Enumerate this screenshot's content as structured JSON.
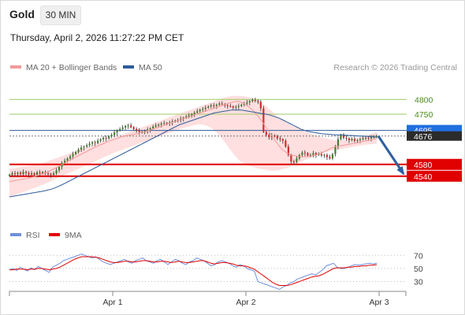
{
  "header": {
    "title": "Gold",
    "timeframe": "30 MIN",
    "datetime": "Thursday, April 2, 2026 11:27:22 PM CET"
  },
  "legend": {
    "main": [
      {
        "label": "MA 20 + Bollinger Bands",
        "color": "#f39a9a"
      },
      {
        "label": "MA 50",
        "color": "#2e5b9a"
      }
    ],
    "rsi": [
      {
        "label": "RSI",
        "color": "#6f8fdc"
      },
      {
        "label": "9MA",
        "color": "#e00000"
      }
    ],
    "credit": "Research © 2026 Trading Central"
  },
  "colors": {
    "up": "#3f7f2a",
    "down": "#d42a2a",
    "band_fill": "#ffd9d9",
    "ma20": "#f39a9a",
    "ma50": "#2e5b9a",
    "resistance": "#9ccc65",
    "support": "#e00000",
    "pivot": "#2e5b9a",
    "arrow": "#2e5fa0",
    "rsi": "#6f8fdc",
    "rsi_ma": "#e00000"
  },
  "chart_data": [
    {
      "type": "candlestick",
      "title": "Gold 30 MIN",
      "ylim": [
        4470,
        4830
      ],
      "x_ticks": [
        "Apr 1",
        "Apr 2",
        "Apr 3"
      ],
      "levels": [
        {
          "value": 4800,
          "label": "4800",
          "kind": "resistance"
        },
        {
          "value": 4750,
          "label": "4750",
          "kind": "resistance"
        },
        {
          "value": 4695,
          "label": "4695",
          "kind": "pivot"
        },
        {
          "value": 4676,
          "label": "4676",
          "kind": "last"
        },
        {
          "value": 4580,
          "label": "4580",
          "kind": "support"
        },
        {
          "value": 4540,
          "label": "4540",
          "kind": "support"
        }
      ],
      "close": [
        4545,
        4550,
        4548,
        4552,
        4547,
        4555,
        4551,
        4546,
        4550,
        4545,
        4553,
        4549,
        4554,
        4550,
        4548,
        4545,
        4550,
        4560,
        4572,
        4585,
        4592,
        4600,
        4607,
        4615,
        4622,
        4630,
        4637,
        4640,
        4645,
        4650,
        4655,
        4652,
        4660,
        4665,
        4670,
        4668,
        4675,
        4680,
        4688,
        4695,
        4700,
        4705,
        4710,
        4712,
        4706,
        4700,
        4695,
        4690,
        4688,
        4692,
        4698,
        4702,
        4708,
        4712,
        4715,
        4718,
        4720,
        4718,
        4722,
        4725,
        4728,
        4730,
        4735,
        4738,
        4742,
        4746,
        4750,
        4755,
        4760,
        4765,
        4768,
        4772,
        4776,
        4780,
        4778,
        4782,
        4786,
        4784,
        4780,
        4778,
        4776,
        4772,
        4775,
        4778,
        4782,
        4786,
        4790,
        4794,
        4798,
        4796,
        4792,
        4770,
        4690,
        4680,
        4672,
        4678,
        4675,
        4668,
        4665,
        4660,
        4640,
        4612,
        4590,
        4588,
        4600,
        4612,
        4620,
        4618,
        4610,
        4612,
        4618,
        4612,
        4615,
        4610,
        4612,
        4605,
        4600,
        4615,
        4640,
        4665,
        4680,
        4670,
        4668,
        4662,
        4666,
        4660,
        4662,
        4665,
        4668,
        4670,
        4668,
        4672,
        4675,
        4676
      ],
      "ma20": [
        4522,
        4524,
        4526,
        4528,
        4530,
        4532,
        4535,
        4538,
        4542,
        4546,
        4550,
        4554,
        4560,
        4566,
        4572,
        4578,
        4585,
        4592,
        4598,
        4604,
        4610,
        4616,
        4622,
        4628,
        4634,
        4640,
        4645,
        4650,
        4655,
        4660,
        4664,
        4668,
        4672,
        4675,
        4678,
        4680,
        4682,
        4684,
        4687,
        4690,
        4694,
        4698,
        4702,
        4706,
        4710,
        4714,
        4718,
        4722,
        4726,
        4730,
        4734,
        4738,
        4742,
        4746,
        4750,
        4754,
        4758,
        4762,
        4766,
        4770,
        4774,
        4778,
        4782,
        4786,
        4790,
        4792,
        4794,
        4790,
        4784,
        4776,
        4766,
        4754,
        4740,
        4724,
        4706,
        4690,
        4672,
        4656,
        4640,
        4628,
        4620,
        4614,
        4610,
        4608,
        4606,
        4606,
        4606,
        4608,
        4610,
        4614,
        4618,
        4624,
        4630,
        4636,
        4640,
        4642,
        4644,
        4646,
        4648,
        4650,
        4652,
        4655,
        4658,
        4660,
        4662,
        4665,
        4668
      ],
      "ma50": [
        4470,
        4472,
        4474,
        4476,
        4478,
        4480,
        4482,
        4484,
        4486,
        4488,
        4490,
        4493,
        4496,
        4500,
        4505,
        4510,
        4516,
        4522,
        4528,
        4534,
        4540,
        4546,
        4552,
        4558,
        4564,
        4570,
        4576,
        4582,
        4588,
        4594,
        4600,
        4606,
        4612,
        4618,
        4624,
        4630,
        4636,
        4642,
        4648,
        4654,
        4660,
        4666,
        4672,
        4678,
        4684,
        4690,
        4696,
        4702,
        4708,
        4714,
        4718,
        4722,
        4726,
        4730,
        4734,
        4738,
        4742,
        4746,
        4750,
        4754,
        4756,
        4758,
        4760,
        4762,
        4764,
        4764,
        4764,
        4764,
        4762,
        4760,
        4758,
        4756,
        4754,
        4752,
        4750,
        4748,
        4744,
        4740,
        4736,
        4730,
        4724,
        4718,
        4712,
        4706,
        4700,
        4696,
        4692,
        4690,
        4688,
        4686,
        4684,
        4683,
        4682,
        4681,
        4680,
        4680,
        4680,
        4679,
        4678,
        4678,
        4677,
        4676,
        4676,
        4675,
        4674,
        4673,
        4672
      ],
      "bb_upper": [
        4565,
        4568,
        4572,
        4575,
        4578,
        4584,
        4592,
        4600,
        4608,
        4616,
        4624,
        4632,
        4640,
        4648,
        4656,
        4664,
        4672,
        4680,
        4688,
        4696,
        4704,
        4712,
        4720,
        4728,
        4736,
        4744,
        4752,
        4760,
        4768,
        4776,
        4784,
        4792,
        4800,
        4808,
        4812,
        4812,
        4810,
        4805,
        4795,
        4780,
        4760,
        4740,
        4725,
        4712,
        4702,
        4692,
        4684,
        4676,
        4670,
        4664,
        4660,
        4662,
        4666,
        4670,
        4676,
        4682,
        4690
      ],
      "bb_lower": [
        4470,
        4478,
        4486,
        4494,
        4502,
        4510,
        4520,
        4530,
        4540,
        4550,
        4560,
        4570,
        4580,
        4590,
        4600,
        4610,
        4620,
        4628,
        4636,
        4644,
        4652,
        4660,
        4668,
        4676,
        4684,
        4692,
        4700,
        4706,
        4712,
        4716,
        4712,
        4700,
        4680,
        4650,
        4620,
        4594,
        4580,
        4572,
        4566,
        4562,
        4558,
        4560,
        4566,
        4574,
        4584,
        4594,
        4604,
        4612,
        4620,
        4626,
        4630,
        4634,
        4638,
        4642,
        4646,
        4648,
        4650
      ],
      "projection": {
        "from": 4676,
        "to": 4540
      }
    },
    {
      "type": "line",
      "title": "RSI",
      "ylim": [
        15,
        80
      ],
      "y_ticks": [
        70,
        50,
        30
      ],
      "rsi": [
        48,
        50,
        47,
        52,
        49,
        46,
        51,
        48,
        53,
        50,
        47,
        44,
        52,
        55,
        58,
        62,
        64,
        66,
        68,
        70,
        72,
        70,
        68,
        66,
        68,
        64,
        60,
        58,
        56,
        58,
        60,
        62,
        64,
        60,
        58,
        62,
        64,
        66,
        62,
        60,
        58,
        62,
        64,
        60,
        56,
        60,
        64,
        62,
        58,
        56,
        60,
        62,
        66,
        64,
        62,
        58,
        54,
        56,
        60,
        62,
        60,
        58,
        54,
        52,
        56,
        54,
        50,
        48,
        46,
        30,
        28,
        26,
        24,
        22,
        20,
        18,
        22,
        24,
        28,
        30,
        34,
        36,
        38,
        40,
        42,
        40,
        44,
        48,
        54,
        56,
        58,
        52,
        50,
        50,
        52,
        54,
        56,
        55,
        56,
        57,
        58,
        57,
        58
      ],
      "rsi_ma": [
        48,
        48,
        49,
        49,
        49,
        48,
        49,
        49,
        50,
        50,
        49,
        48,
        49,
        50,
        52,
        55,
        58,
        61,
        64,
        66,
        68,
        68,
        68,
        68,
        67,
        66,
        64,
        62,
        60,
        59,
        59,
        60,
        61,
        61,
        60,
        60,
        61,
        62,
        62,
        61,
        60,
        60,
        61,
        61,
        60,
        59,
        60,
        61,
        60,
        59,
        59,
        60,
        61,
        62,
        62,
        60,
        58,
        57,
        58,
        59,
        59,
        58,
        57,
        55,
        54,
        54,
        53,
        51,
        49,
        45,
        41,
        37,
        33,
        29,
        26,
        24,
        24,
        24,
        25,
        27,
        29,
        31,
        33,
        35,
        37,
        38,
        39,
        41,
        44,
        47,
        50,
        51,
        51,
        51,
        52,
        52,
        53,
        53,
        54,
        54,
        55,
        55,
        56
      ]
    }
  ]
}
